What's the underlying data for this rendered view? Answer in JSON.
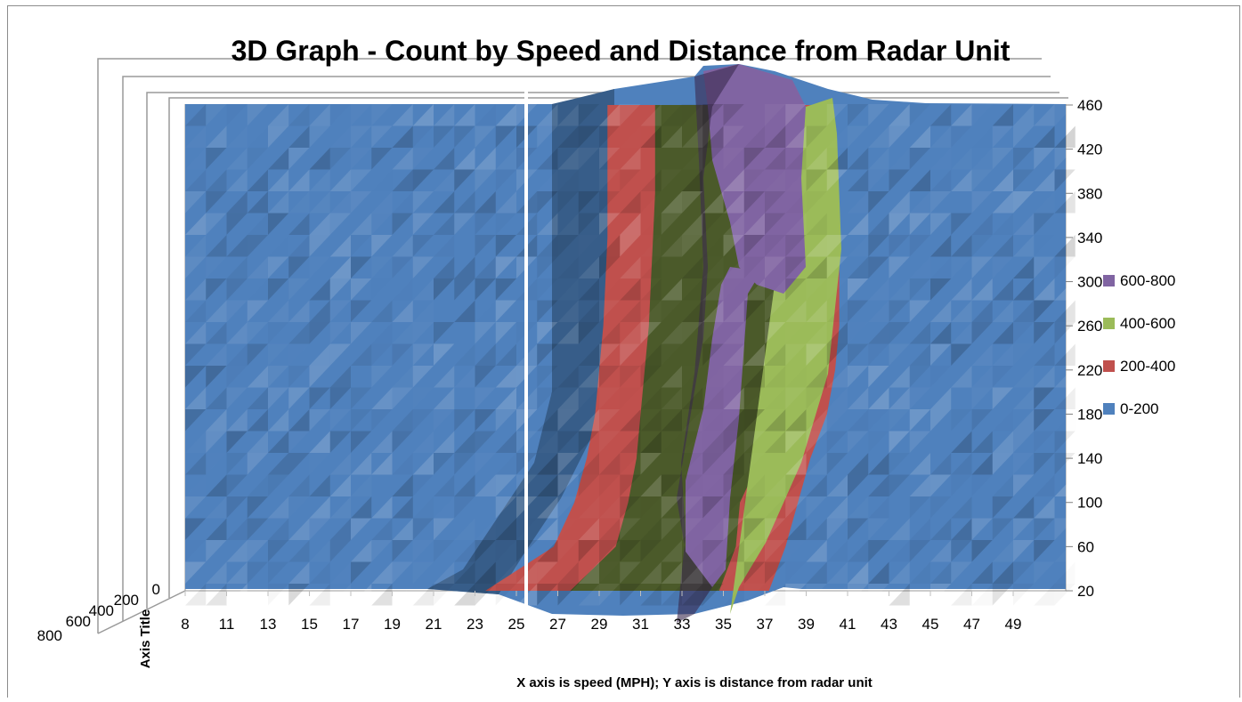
{
  "chart_data": {
    "type": "surface",
    "title": "3D Graph - Count by Speed and Distance from Radar Unit",
    "xlabel": "X axis is speed (MPH); Y axis is distance from radar unit",
    "depth_axis_title": "Axis Title",
    "x_ticks": [
      "8",
      "11",
      "13",
      "15",
      "17",
      "19",
      "21",
      "23",
      "25",
      "27",
      "29",
      "31",
      "33",
      "35",
      "37",
      "39",
      "41",
      "43",
      "45",
      "47",
      "49"
    ],
    "y_ticks": [
      "20",
      "60",
      "100",
      "140",
      "180",
      "220",
      "260",
      "300",
      "340",
      "380",
      "420",
      "460"
    ],
    "z_ticks": [
      "0",
      "200",
      "400",
      "600",
      "800"
    ],
    "legend": [
      {
        "label": "600-800",
        "color": "#8064a2"
      },
      {
        "label": "400-600",
        "color": "#9bbb59"
      },
      {
        "label": "200-400",
        "color": "#c0504d"
      },
      {
        "label": "0-200",
        "color": "#4f81bd"
      }
    ],
    "bands": {
      "y_samples": [
        20,
        60,
        100,
        140,
        180,
        220,
        260,
        300,
        340,
        380,
        420,
        460
      ],
      "band_200_left": [
        23.5,
        26.8,
        27.8,
        28.4,
        28.8,
        29.0,
        29.2,
        29.3,
        29.4,
        29.4,
        29.4,
        29.4
      ],
      "band_400_left": [
        27.6,
        29.8,
        30.4,
        30.8,
        31.0,
        31.2,
        31.4,
        31.5,
        31.6,
        31.7,
        31.7,
        31.7
      ],
      "band_600_left": [
        33.0,
        33.0,
        33.0,
        33.2,
        33.6,
        33.8,
        34.0,
        34.0,
        34.0,
        34.0,
        34.0,
        34.0
      ],
      "band_600_right": [
        34.6,
        35.0,
        35.2,
        35.4,
        35.6,
        35.8,
        36.0,
        37.0,
        37.2,
        37.0,
        36.8,
        36.8
      ],
      "band_400_right": [
        34.8,
        35.6,
        35.8,
        36.8,
        37.4,
        38.0,
        38.6,
        38.6,
        38.6,
        38.4,
        38.0,
        37.8
      ],
      "band_200_right": [
        37.2,
        38.0,
        38.6,
        39.2,
        40.0,
        40.4,
        40.6,
        40.6,
        40.6,
        40.2,
        39.8,
        39.6
      ]
    }
  }
}
